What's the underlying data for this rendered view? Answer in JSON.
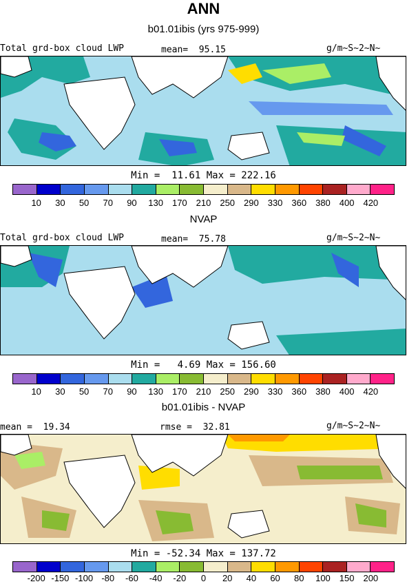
{
  "title": "ANN",
  "panels": [
    {
      "subtitle": "b01.01ibis (yrs 975-999)",
      "left_label": "Total grd-box cloud LWP",
      "center_label": "mean=  95.15",
      "right_label": "g/m~S~2~N~",
      "stats": "Min =  11.61 Max = 222.16",
      "ticks": [
        "10",
        "30",
        "50",
        "70",
        "90",
        "130",
        "170",
        "210",
        "250",
        "290",
        "330",
        "360",
        "380",
        "400",
        "420"
      ],
      "colors": [
        "#9966cc",
        "#0000cc",
        "#3366dd",
        "#6699ee",
        "#aaddee",
        "#22aaa0",
        "#aaee66",
        "#88bb33",
        "#f5eecc",
        "#d9b88a",
        "#ffdd00",
        "#ff9900",
        "#ff4400",
        "#aa2222",
        "#ffaacc",
        "#ff2288"
      ],
      "ocean_color": "#aaddee"
    },
    {
      "subtitle": "NVAP",
      "left_label": "Total grd-box cloud LWP",
      "center_label": "mean=  75.78",
      "right_label": "g/m~S~2~N~",
      "stats": "Min =   4.69 Max = 156.60",
      "ticks": [
        "10",
        "30",
        "50",
        "70",
        "90",
        "130",
        "170",
        "210",
        "250",
        "290",
        "330",
        "360",
        "380",
        "400",
        "420"
      ],
      "colors": [
        "#9966cc",
        "#0000cc",
        "#3366dd",
        "#6699ee",
        "#aaddee",
        "#22aaa0",
        "#aaee66",
        "#88bb33",
        "#f5eecc",
        "#d9b88a",
        "#ffdd00",
        "#ff9900",
        "#ff4400",
        "#aa2222",
        "#ffaacc",
        "#ff2288"
      ],
      "ocean_color": "#aaddee"
    },
    {
      "subtitle": "b01.01ibis - NVAP",
      "left_label": "mean =  19.34",
      "center_label": "rmse =  32.81",
      "right_label": "g/m~S~2~N~",
      "stats": "Min = -52.34 Max = 137.72",
      "ticks": [
        "-200",
        "-150",
        "-100",
        "-80",
        "-60",
        "-40",
        "-20",
        "0",
        "20",
        "40",
        "60",
        "80",
        "100",
        "150",
        "200"
      ],
      "colors": [
        "#9966cc",
        "#0000cc",
        "#3366dd",
        "#6699ee",
        "#aaddee",
        "#22aaa0",
        "#aaee66",
        "#88bb33",
        "#f5eecc",
        "#d9b88a",
        "#ffdd00",
        "#ff9900",
        "#ff4400",
        "#aa2222",
        "#ffaacc",
        "#ff2288"
      ],
      "ocean_color": "#f5eecc"
    }
  ]
}
